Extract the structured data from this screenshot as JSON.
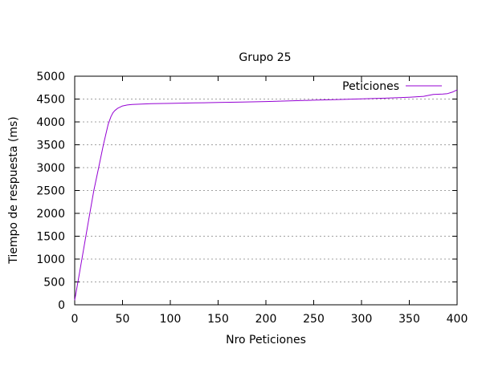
{
  "chart_data": {
    "type": "line",
    "title": "Grupo 25",
    "xlabel": "Nro Peticiones",
    "ylabel": "Tiempo de respuesta (ms)",
    "xlim": [
      0,
      400
    ],
    "ylim": [
      0,
      5000
    ],
    "xticks": [
      0,
      50,
      100,
      150,
      200,
      250,
      300,
      350,
      400
    ],
    "yticks": [
      0,
      500,
      1000,
      1500,
      2000,
      2500,
      3000,
      3500,
      4000,
      4500,
      5000
    ],
    "grid": "horizontal-dotted",
    "legend_position": "top-right",
    "series": [
      {
        "name": "Peticiones",
        "color": "#9400d3",
        "points": [
          [
            0,
            100
          ],
          [
            5,
            700
          ],
          [
            10,
            1300
          ],
          [
            15,
            1900
          ],
          [
            20,
            2500
          ],
          [
            25,
            3000
          ],
          [
            30,
            3500
          ],
          [
            35,
            3950
          ],
          [
            38,
            4120
          ],
          [
            40,
            4200
          ],
          [
            42,
            4250
          ],
          [
            45,
            4300
          ],
          [
            50,
            4350
          ],
          [
            55,
            4370
          ],
          [
            60,
            4380
          ],
          [
            70,
            4390
          ],
          [
            80,
            4400
          ],
          [
            100,
            4405
          ],
          [
            125,
            4415
          ],
          [
            150,
            4425
          ],
          [
            175,
            4435
          ],
          [
            200,
            4445
          ],
          [
            225,
            4460
          ],
          [
            250,
            4475
          ],
          [
            275,
            4490
          ],
          [
            300,
            4505
          ],
          [
            325,
            4520
          ],
          [
            350,
            4540
          ],
          [
            365,
            4560
          ],
          [
            375,
            4600
          ],
          [
            385,
            4610
          ],
          [
            390,
            4620
          ],
          [
            395,
            4650
          ],
          [
            400,
            4700
          ]
        ]
      }
    ]
  }
}
